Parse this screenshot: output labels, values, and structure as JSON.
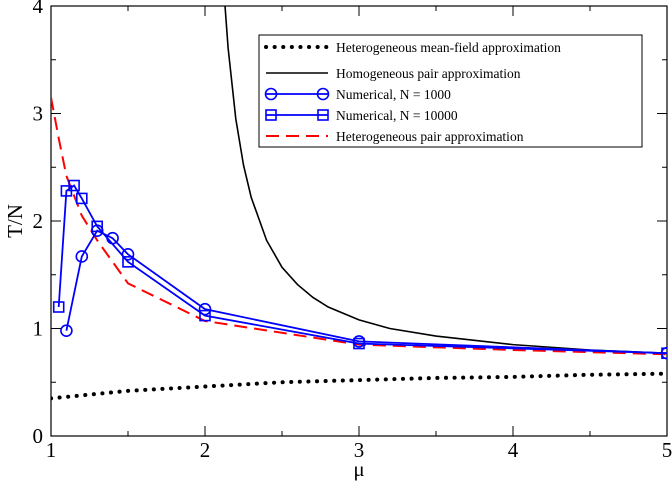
{
  "chart_data": {
    "type": "line",
    "title": "",
    "xlabel": "μ",
    "ylabel": "T/N",
    "xlim": [
      1,
      5
    ],
    "ylim": [
      0,
      4
    ],
    "x_ticks": [
      1,
      2,
      3,
      4,
      5
    ],
    "x_tick_labels": [
      "1",
      "2",
      "3",
      "4",
      "5"
    ],
    "y_ticks": [
      0,
      1,
      2,
      3,
      4
    ],
    "y_tick_labels": [
      "0",
      "1",
      "2",
      "3",
      "4"
    ],
    "minor_ticks": true,
    "grid": false,
    "legend_position": "top-right",
    "series": [
      {
        "name": "Heterogeneous mean-field approximation",
        "style": "dotted",
        "color": "#000000",
        "x": [
          1.0,
          1.5,
          2.0,
          2.5,
          3.0,
          3.5,
          4.0,
          4.5,
          5.0
        ],
        "y": [
          0.35,
          0.42,
          0.46,
          0.5,
          0.52,
          0.54,
          0.55,
          0.57,
          0.58
        ]
      },
      {
        "name": "Homogeneous pair approximation",
        "style": "solid",
        "color": "#000000",
        "x": [
          2.13,
          2.15,
          2.2,
          2.25,
          2.3,
          2.4,
          2.5,
          2.6,
          2.7,
          2.8,
          3.0,
          3.2,
          3.5,
          4.0,
          4.5,
          5.0
        ],
        "y": [
          4.0,
          3.61,
          2.95,
          2.52,
          2.22,
          1.82,
          1.57,
          1.41,
          1.29,
          1.2,
          1.08,
          1.0,
          0.93,
          0.85,
          0.8,
          0.77
        ]
      },
      {
        "name": "Numerical, N = 1000",
        "style": "solid",
        "marker": "circle",
        "color": "#0000ff",
        "x": [
          1.1,
          1.2,
          1.3,
          1.4,
          1.5,
          2.0,
          3.0,
          5.0
        ],
        "y": [
          0.98,
          1.67,
          1.91,
          1.84,
          1.69,
          1.18,
          0.88,
          0.77
        ]
      },
      {
        "name": "Numerical, N = 10000",
        "style": "solid",
        "marker": "square",
        "color": "#0000ff",
        "x": [
          1.05,
          1.1,
          1.15,
          1.2,
          1.3,
          1.5,
          2.0,
          3.0,
          5.0
        ],
        "y": [
          1.2,
          2.28,
          2.33,
          2.21,
          1.95,
          1.62,
          1.12,
          0.86,
          0.77
        ]
      },
      {
        "name": "Heterogeneous pair approximation",
        "style": "dashed",
        "color": "#ff0000",
        "x": [
          1.0,
          1.05,
          1.1,
          1.2,
          1.3,
          1.5,
          2.0,
          3.0,
          4.0,
          5.0
        ],
        "y": [
          3.15,
          2.77,
          2.42,
          2.05,
          1.82,
          1.42,
          1.07,
          0.85,
          0.8,
          0.76
        ]
      }
    ]
  }
}
